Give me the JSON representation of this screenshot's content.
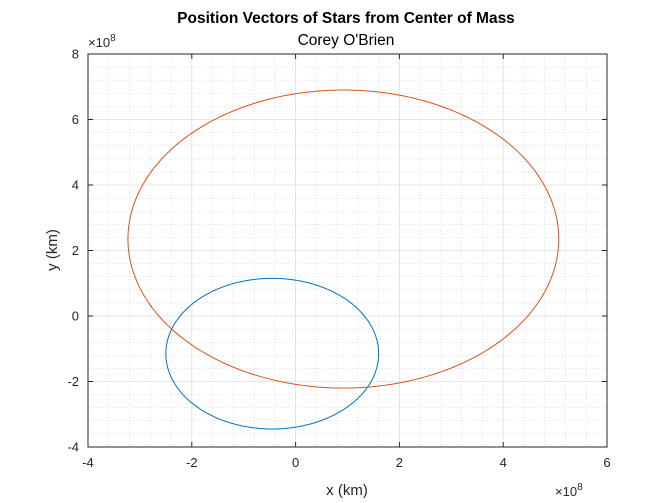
{
  "chart_data": {
    "type": "line",
    "title": "Position Vectors of Stars from Center of Mass",
    "subtitle": "Corey O'Brien",
    "xlabel": "x (km)",
    "ylabel": "y (km)",
    "xlim": [
      -400000000.0,
      600000000.0
    ],
    "ylim": [
      -400000000.0,
      800000000.0
    ],
    "x_ticks": [
      -4,
      -2,
      0,
      2,
      4,
      6
    ],
    "y_ticks": [
      -4,
      -2,
      0,
      2,
      4,
      6,
      8
    ],
    "x_exponent_label": "×10",
    "x_exponent_power": "8",
    "y_exponent_label": "×10",
    "y_exponent_power": "8",
    "grid": true,
    "minor_grid": true,
    "series": [
      {
        "color": "#0072BD",
        "ellipse": {
          "cx": -45000000.0,
          "cy": -115000000.0,
          "rx": 205000000.0,
          "ry": 230000000.0,
          "rotation_deg": 0
        }
      },
      {
        "color": "#D95319",
        "ellipse": {
          "cx": 92000000.0,
          "cy": 235000000.0,
          "rx": 415000000.0,
          "ry": 455000000.0,
          "rotation_deg": 0
        }
      }
    ]
  }
}
